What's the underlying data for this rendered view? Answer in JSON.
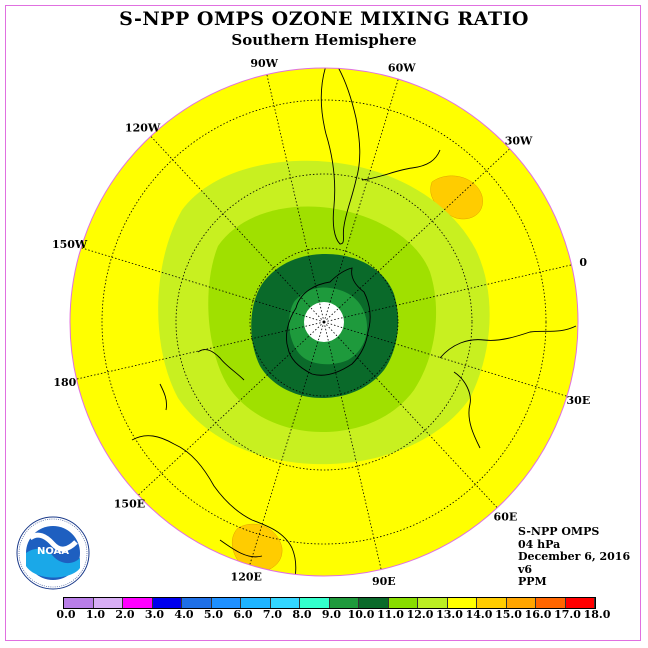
{
  "title": "S-NPP OMPS OZONE MIXING RATIO",
  "subtitle": "Southern Hemisphere",
  "longitude_labels": [
    "90W",
    "60W",
    "30W",
    "0",
    "30E",
    "60E",
    "90E",
    "120E",
    "150E",
    "180",
    "150W",
    "120W"
  ],
  "info": {
    "instrument": "S-NPP OMPS",
    "level": "04 hPa",
    "date": "December 6, 2016",
    "version": "v6",
    "units": "PPM"
  },
  "logo_text": "NOAA",
  "colorbar": {
    "ticks": [
      "0.0",
      "1.0",
      "2.0",
      "3.0",
      "4.0",
      "5.0",
      "6.0",
      "7.0",
      "8.0",
      "9.0",
      "10.0",
      "11.0",
      "12.0",
      "13.0",
      "14.0",
      "15.0",
      "16.0",
      "17.0",
      "18.0"
    ],
    "colors": [
      "#b97ee8",
      "#d8aef5",
      "#ff00ff",
      "#0000ee",
      "#1e6fe6",
      "#1e90ff",
      "#1eb4ff",
      "#33d6ff",
      "#33ffcc",
      "#1e9a3c",
      "#0a6a2a",
      "#88dd00",
      "#bbee22",
      "#ffff00",
      "#ffcc00",
      "#ffa500",
      "#ff6600",
      "#ff0000",
      "#8b5a3c"
    ]
  },
  "map_colors": {
    "background": "#ffff00",
    "band_13_14": "#ffcc00",
    "band_12_13": "#c8f020",
    "band_11_12": "#a0e000",
    "band_10_11": "#0a6a2a",
    "band_9_10": "#1e9a3c",
    "pole": "#ffffff"
  }
}
